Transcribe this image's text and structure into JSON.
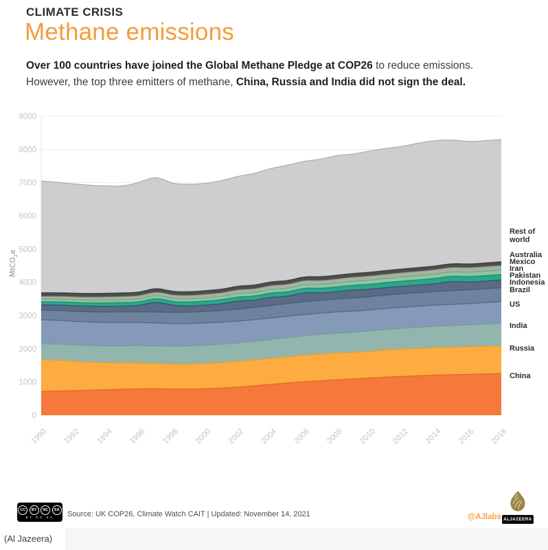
{
  "header": {
    "kicker": "CLIMATE CRISIS",
    "title": "Methane emissions",
    "intro_lines": [
      [
        {
          "text": "Over 100 countries have joined the Global Methane Pledge at COP26",
          "bold": true
        },
        {
          "text": " to reduce emissions.",
          "bold": false
        }
      ],
      [
        {
          "text": "However, the top three emitters of methane, ",
          "bold": false
        },
        {
          "text": "China, Russia and India did not sign the deal.",
          "bold": true
        }
      ]
    ]
  },
  "chart_data": {
    "type": "area",
    "stacked": true,
    "grid": "horizontal-light",
    "legend_position": "right-inline-labels",
    "ylabel": "MtCO2e",
    "ylabel_parts": {
      "pre": "MtCO",
      "sub": "2",
      "post": "e"
    },
    "ylim": [
      0,
      9000
    ],
    "y_ticks": [
      0,
      1000,
      2000,
      3000,
      4000,
      5000,
      6000,
      7000,
      8000,
      9000
    ],
    "x": [
      1990,
      1991,
      1992,
      1993,
      1994,
      1995,
      1996,
      1997,
      1998,
      1999,
      2000,
      2001,
      2002,
      2003,
      2004,
      2005,
      2006,
      2007,
      2008,
      2009,
      2010,
      2011,
      2012,
      2013,
      2014,
      2015,
      2016,
      2017,
      2018
    ],
    "x_ticks": [
      1990,
      1992,
      1994,
      1996,
      1998,
      2000,
      2002,
      2004,
      2006,
      2008,
      2010,
      2012,
      2014,
      2016,
      2018
    ],
    "series": [
      {
        "name": "China",
        "color": "#F4793A",
        "edge": "#E0621A",
        "values": [
          720,
          730,
          740,
          755,
          770,
          785,
          795,
          800,
          790,
          785,
          800,
          820,
          850,
          890,
          930,
          975,
          1010,
          1040,
          1070,
          1095,
          1120,
          1150,
          1170,
          1190,
          1210,
          1220,
          1230,
          1245,
          1260
        ]
      },
      {
        "name": "Russia",
        "color": "#FCAC41",
        "edge": "#EA9C28",
        "values": [
          950,
          930,
          880,
          840,
          810,
          790,
          780,
          760,
          750,
          755,
          760,
          765,
          770,
          775,
          780,
          785,
          795,
          800,
          805,
          795,
          805,
          815,
          820,
          820,
          825,
          825,
          830,
          830,
          830
        ]
      },
      {
        "name": "India",
        "color": "#92B6AD",
        "edge": "#6F9C8D",
        "values": [
          480,
          487,
          494,
          500,
          507,
          514,
          520,
          527,
          534,
          540,
          547,
          553,
          558,
          563,
          570,
          577,
          584,
          591,
          598,
          606,
          614,
          622,
          630,
          638,
          645,
          652,
          660,
          670,
          680
        ]
      },
      {
        "name": "US",
        "color": "#859AB9",
        "edge": "#47628A",
        "values": [
          720,
          715,
          712,
          708,
          705,
          700,
          695,
          690,
          683,
          675,
          668,
          660,
          655,
          650,
          647,
          643,
          640,
          640,
          638,
          634,
          630,
          628,
          630,
          633,
          636,
          640,
          638,
          644,
          650
        ]
      },
      {
        "name": "Brazil",
        "color": "#6D839E",
        "edge": "#3E5676",
        "values": [
          290,
          296,
          302,
          308,
          314,
          320,
          326,
          332,
          338,
          344,
          350,
          356,
          362,
          368,
          374,
          380,
          384,
          388,
          392,
          396,
          400,
          404,
          407,
          410,
          412,
          414,
          416,
          418,
          420
        ]
      },
      {
        "name": "Indonesia",
        "color": "#5A6C85",
        "edge": "#30485F",
        "values": [
          160,
          163,
          166,
          169,
          172,
          175,
          178,
          320,
          205,
          185,
          190,
          195,
          250,
          205,
          260,
          210,
          285,
          215,
          218,
          245,
          222,
          224,
          226,
          228,
          230,
          285,
          230,
          230,
          230
        ]
      },
      {
        "name": "Pakistan",
        "color": "#2CA68D",
        "edge": "#0F8066",
        "values": [
          95,
          97,
          99,
          101,
          104,
          106,
          109,
          111,
          114,
          117,
          120,
          122,
          125,
          128,
          131,
          134,
          137,
          140,
          143,
          146,
          149,
          152,
          154,
          157,
          159,
          161,
          163,
          164,
          165
        ]
      },
      {
        "name": "Iran",
        "color": "#90C5A3",
        "edge": "#63A87C",
        "values": [
          75,
          77,
          79,
          81,
          84,
          86,
          88,
          90,
          92,
          94,
          96,
          99,
          101,
          104,
          106,
          109,
          111,
          114,
          116,
          119,
          121,
          123,
          125,
          127,
          129,
          130,
          132,
          134,
          135
        ]
      },
      {
        "name": "Mexico",
        "color": "#A7B2A0",
        "edge": "#818E72",
        "values": [
          85,
          87,
          89,
          91,
          93,
          95,
          97,
          99,
          100,
          102,
          104,
          106,
          108,
          110,
          112,
          114,
          115,
          117,
          119,
          120,
          122,
          124,
          126,
          128,
          129,
          131,
          132,
          134,
          135
        ]
      },
      {
        "name": "Australia",
        "color": "#4D4D4F",
        "edge": "#333335",
        "values": [
          110,
          110,
          111,
          111,
          112,
          112,
          113,
          113,
          114,
          114,
          115,
          115,
          116,
          116,
          117,
          117,
          117,
          117,
          117,
          116,
          116,
          116,
          115,
          115,
          115,
          115,
          115,
          115,
          115
        ]
      },
      {
        "name": "Rest of world",
        "color": "#CECDD0",
        "edge": "#A5A4A7",
        "values": [
          3365,
          3318,
          3288,
          3256,
          3229,
          3207,
          3309,
          3358,
          3240,
          3239,
          3220,
          3269,
          3305,
          3361,
          3413,
          3476,
          3472,
          3538,
          3614,
          3578,
          3661,
          3672,
          3687,
          3754,
          3780,
          3717,
          3684,
          3676,
          3680
        ]
      }
    ]
  },
  "footer": {
    "license_icons": [
      {
        "icon": "cc-icon",
        "glyph": "CC"
      },
      {
        "icon": "attribution-icon",
        "glyph": "BY"
      },
      {
        "icon": "non-commercial-icon",
        "glyph": "NC"
      },
      {
        "icon": "share-alike-icon",
        "glyph": "SA"
      }
    ],
    "license_caption": "BY NC SA",
    "source": "Source: UK COP26, Climate Watch CAIT | Updated: November 14, 2021",
    "credit": "@AJlabs",
    "logo_text": "ALJAZEERA"
  },
  "page": {
    "caption": "(Al Jazeera)"
  }
}
